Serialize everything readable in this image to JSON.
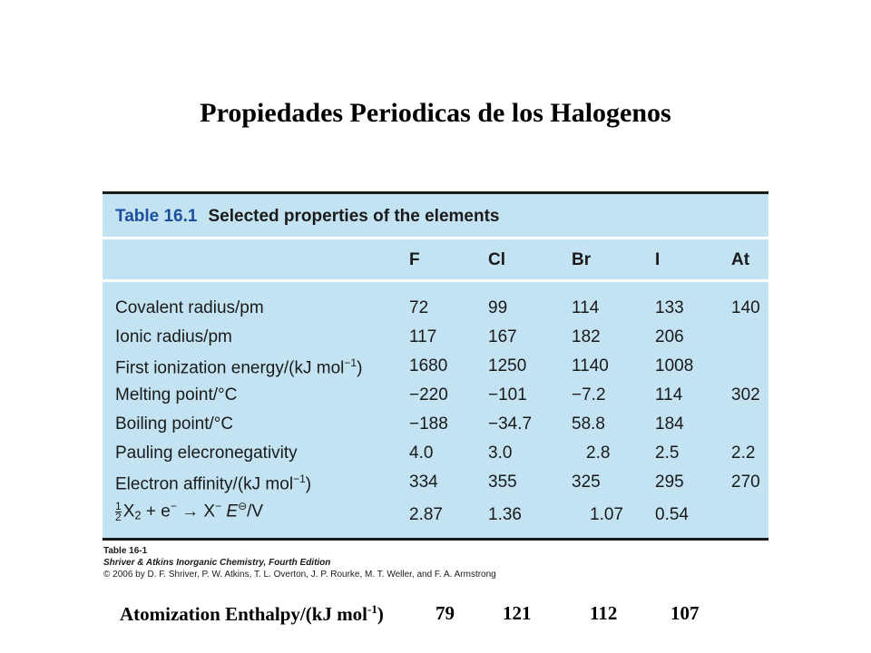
{
  "slide": {
    "title": "Propiedades Periodicas de los Halogenos"
  },
  "table": {
    "number": "Table 16.1",
    "caption": "Selected properties of the elements",
    "headers": [
      "F",
      "Cl",
      "Br",
      "I",
      "At"
    ],
    "rows": [
      {
        "label": "Covalent radius/pm",
        "values": [
          "72",
          "99",
          "114",
          "133",
          "140"
        ]
      },
      {
        "label": "Ionic radius/pm",
        "values": [
          "117",
          "167",
          "182",
          "206",
          ""
        ]
      },
      {
        "label_pre": "First ionization energy/(kJ mol",
        "label_sup": "−1",
        "label_post": ")",
        "values": [
          "1680",
          "1250",
          "1140",
          "1008",
          ""
        ]
      },
      {
        "label": "Melting point/°C",
        "values": [
          "−220",
          "−101",
          "−7.2",
          "114",
          "302"
        ]
      },
      {
        "label": "Boiling point/°C",
        "values": [
          "−188",
          "−34.7",
          "58.8",
          "184",
          ""
        ]
      },
      {
        "label": "Pauling elecronegativity",
        "values": [
          "4.0",
          "3.0",
          "2.8",
          "2.5",
          "2.2"
        ]
      },
      {
        "label_pre": "Electron affinity/(kJ mol",
        "label_sup": "−1",
        "label_post": ")",
        "values": [
          "334",
          "355",
          "325",
          "295",
          "270"
        ]
      },
      {
        "frac_num": "1",
        "frac_den": "2",
        "label_a": "X",
        "label_sub": "2",
        "label_b": " + e",
        "label_sup1": "−",
        "label_c": " → X",
        "label_sup2": "−",
        "label_d": " E",
        "label_sup3": "⊖",
        "label_e": "/V",
        "values": [
          "2.87",
          "1.36",
          "1.07",
          "0.54",
          ""
        ]
      }
    ]
  },
  "credit": {
    "line1": "Table 16-1",
    "line2": "Shriver & Atkins Inorganic Chemistry, Fourth Edition",
    "line3": "© 2006 by D. F. Shriver, P. W. Atkins, T. L. Overton, J. P. Rourke, M. T. Weller, and F. A. Armstrong"
  },
  "atomization": {
    "label_pre": "Atomization Enthalpy/(kJ mol",
    "label_sup": "-1",
    "label_post": ")",
    "values": [
      "79",
      "121",
      "112",
      "107"
    ]
  },
  "colors": {
    "table_bg": "#c3e3f3",
    "caption_number": "#1c4f9c"
  }
}
